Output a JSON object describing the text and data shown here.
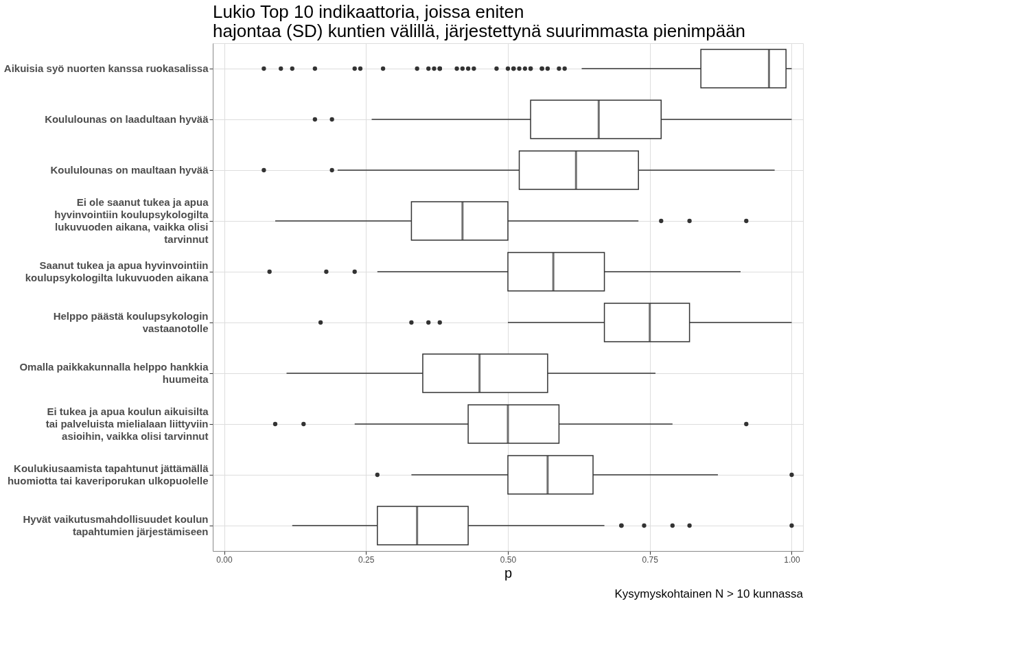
{
  "chart_data": {
    "type": "box",
    "orientation": "horizontal",
    "title": "Lukio Top 10 indikaattoria, joissa eniten\nhajontaa (SD) kuntien välillä, järjestettynä suurimmasta pienimpään",
    "xlabel": "p",
    "annotations": [
      "Kysymyskohtainen N > 10 kunnassa"
    ],
    "categories": [
      "Aikuisia syö nuorten kanssa ruokasalissa",
      "Koululounas on laadultaan hyvää",
      "Koululounas on maultaan hyvää",
      "Ei ole saanut tukea ja apua\nhyvinvointiin koulupsykologilta\nlukuvuoden aikana, vaikka olisi\ntarvinnut",
      "Saanut tukea ja apua hyvinvointiin\nkoulupsykologilta lukuvuoden aikana",
      "Helppo päästä koulupsykologin\nvastaanotolle",
      "Omalla paikkakunnalla helppo hankkia\nhuumeita",
      "Ei tukea ja apua koulun aikuisilta\ntai palveluista mielialaan liittyviin\nasioihin, vaikka olisi tarvinnut",
      "Koulukiusaamista tapahtunut jättämällä\nhuomiotta tai kaveriporukan ulkopuolelle",
      "Hyvät vaikutusmahdollisuudet koulun\ntapahtumien järjestämiseen"
    ],
    "xlim": [
      -0.02,
      1.02
    ],
    "xticks": [
      {
        "value": 0,
        "label": "0.00"
      },
      {
        "value": 0.25,
        "label": "0.25"
      },
      {
        "value": 0.5,
        "label": "0.50"
      },
      {
        "value": 0.75,
        "label": "0.75"
      },
      {
        "value": 1,
        "label": "1.00"
      }
    ],
    "grid": true,
    "series": [
      {
        "color": "#333333",
        "boxes": [
          {
            "low": 0.63,
            "q1": 0.84,
            "median": 0.96,
            "q3": 0.99,
            "high": 1.0,
            "outliers": [
              0.07,
              0.1,
              0.12,
              0.16,
              0.23,
              0.24,
              0.28,
              0.34,
              0.36,
              0.37,
              0.38,
              0.38,
              0.38,
              0.41,
              0.42,
              0.43,
              0.44,
              0.48,
              0.5,
              0.51,
              0.51,
              0.52,
              0.53,
              0.54,
              0.54,
              0.56,
              0.56,
              0.57,
              0.59,
              0.6
            ]
          },
          {
            "low": 0.26,
            "q1": 0.54,
            "median": 0.66,
            "q3": 0.77,
            "high": 1.0,
            "outliers": [
              0.16,
              0.19
            ]
          },
          {
            "low": 0.2,
            "q1": 0.52,
            "median": 0.62,
            "q3": 0.73,
            "high": 0.97,
            "outliers": [
              0.07,
              0.19
            ]
          },
          {
            "low": 0.09,
            "q1": 0.33,
            "median": 0.42,
            "q3": 0.5,
            "high": 0.73,
            "outliers": [
              0.77,
              0.82,
              0.92
            ]
          },
          {
            "low": 0.27,
            "q1": 0.5,
            "median": 0.58,
            "q3": 0.67,
            "high": 0.91,
            "outliers": [
              0.08,
              0.18,
              0.23
            ]
          },
          {
            "low": 0.5,
            "q1": 0.67,
            "median": 0.75,
            "q3": 0.82,
            "high": 1.0,
            "outliers": [
              0.17,
              0.33,
              0.36,
              0.38
            ]
          },
          {
            "low": 0.11,
            "q1": 0.35,
            "median": 0.45,
            "q3": 0.57,
            "high": 0.76
          },
          {
            "low": 0.23,
            "q1": 0.43,
            "median": 0.5,
            "q3": 0.59,
            "high": 0.79,
            "outliers": [
              0.09,
              0.14,
              0.92
            ]
          },
          {
            "low": 0.33,
            "q1": 0.5,
            "median": 0.57,
            "q3": 0.65,
            "high": 0.87,
            "outliers": [
              0.27,
              1.0
            ]
          },
          {
            "low": 0.12,
            "q1": 0.27,
            "median": 0.34,
            "q3": 0.43,
            "high": 0.67,
            "outliers": [
              0.7,
              0.7,
              0.74,
              0.79,
              0.82,
              1.0
            ]
          }
        ]
      }
    ]
  }
}
